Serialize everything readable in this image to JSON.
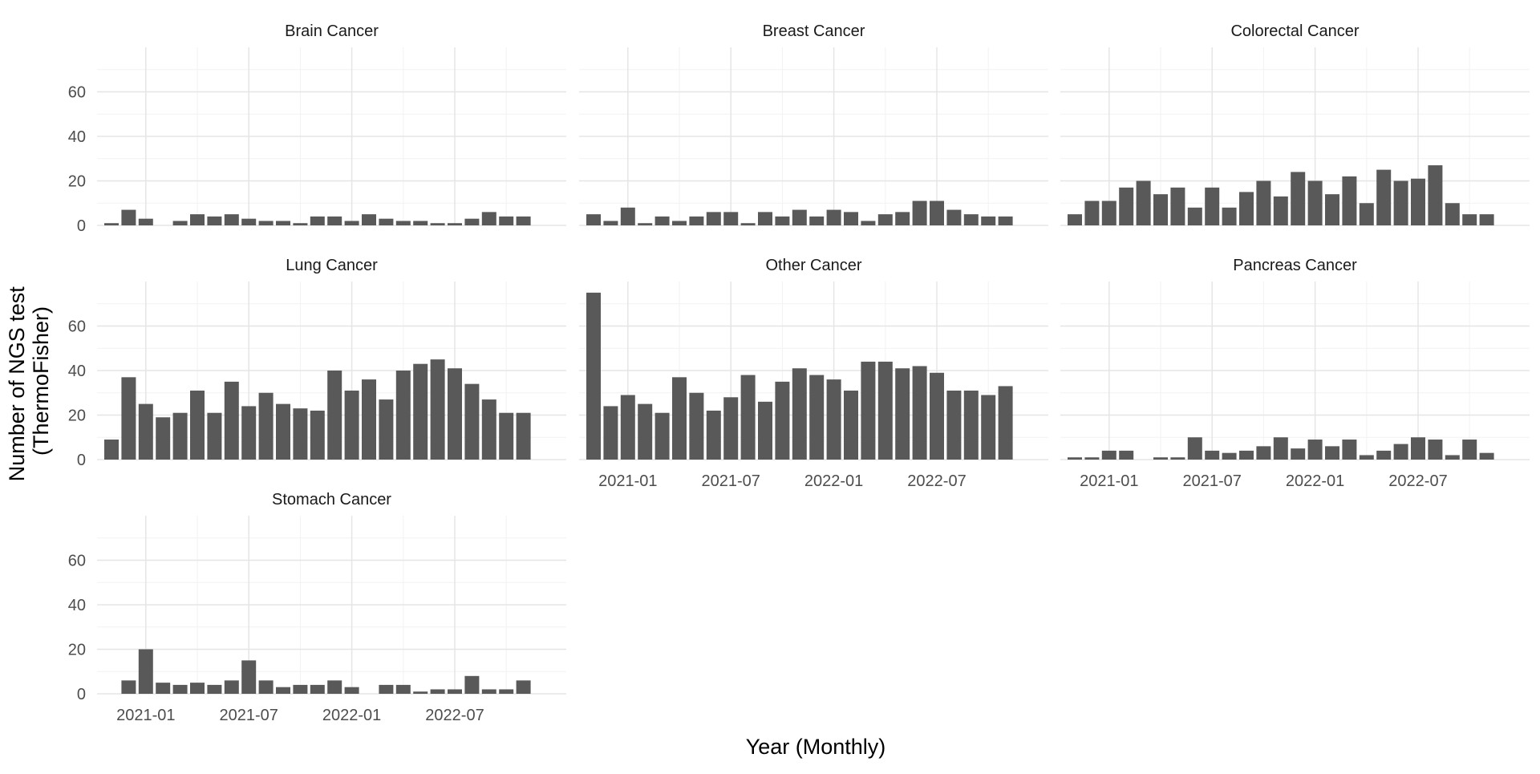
{
  "chart_data": {
    "type": "bar",
    "title": "",
    "xlabel": "Year (Monthly)",
    "ylabel_lines": [
      "Number of NGS test",
      "(ThermoFisher)"
    ],
    "ylim": [
      0,
      80
    ],
    "y_ticks": [
      0,
      20,
      40,
      60
    ],
    "x_tick_labels": [
      "2021-01",
      "2021-07",
      "2022-01",
      "2022-07"
    ],
    "x_tick_dates": [
      "2021-01",
      "2021-07",
      "2022-01",
      "2022-07"
    ],
    "months": [
      "2020-11",
      "2020-12",
      "2021-01",
      "2021-02",
      "2021-03",
      "2021-04",
      "2021-05",
      "2021-06",
      "2021-07",
      "2021-08",
      "2021-09",
      "2021-10",
      "2021-11",
      "2021-12",
      "2022-01",
      "2022-02",
      "2022-03",
      "2022-04",
      "2022-05",
      "2022-06",
      "2022-07",
      "2022-08",
      "2022-09",
      "2022-10",
      "2022-11",
      "2022-12"
    ],
    "facets": [
      {
        "name": "Brain Cancer",
        "values": [
          1,
          7,
          3,
          0,
          2,
          5,
          4,
          5,
          3,
          2,
          2,
          1,
          4,
          4,
          2,
          5,
          3,
          2,
          2,
          1,
          1,
          3,
          6,
          4,
          4,
          null
        ]
      },
      {
        "name": "Breast Cancer",
        "values": [
          5,
          2,
          8,
          1,
          4,
          2,
          4,
          6,
          6,
          1,
          6,
          4,
          7,
          4,
          7,
          6,
          2,
          5,
          6,
          11,
          11,
          7,
          5,
          4,
          4,
          null
        ]
      },
      {
        "name": "Colorectal Cancer",
        "values": [
          5,
          11,
          11,
          17,
          20,
          14,
          17,
          8,
          17,
          8,
          15,
          20,
          13,
          24,
          20,
          14,
          22,
          10,
          25,
          20,
          21,
          27,
          10,
          5,
          5,
          null
        ]
      },
      {
        "name": "Lung Cancer",
        "values": [
          9,
          37,
          25,
          19,
          21,
          31,
          21,
          35,
          24,
          30,
          25,
          23,
          22,
          40,
          31,
          36,
          27,
          40,
          43,
          45,
          41,
          34,
          27,
          21,
          21,
          null
        ]
      },
      {
        "name": "Other Cancer",
        "values": [
          75,
          24,
          29,
          25,
          21,
          37,
          30,
          22,
          28,
          38,
          26,
          35,
          41,
          38,
          36,
          31,
          44,
          44,
          41,
          42,
          39,
          31,
          31,
          29,
          33,
          null
        ]
      },
      {
        "name": "Pancreas Cancer",
        "values": [
          1,
          1,
          4,
          4,
          0,
          1,
          1,
          10,
          4,
          3,
          4,
          6,
          10,
          5,
          9,
          6,
          9,
          2,
          4,
          7,
          10,
          9,
          2,
          9,
          3,
          null
        ]
      },
      {
        "name": "Stomach Cancer",
        "values": [
          null,
          6,
          20,
          5,
          4,
          5,
          4,
          6,
          15,
          6,
          3,
          4,
          4,
          6,
          3,
          0,
          4,
          4,
          1,
          2,
          2,
          8,
          2,
          2,
          6,
          null
        ]
      }
    ]
  }
}
